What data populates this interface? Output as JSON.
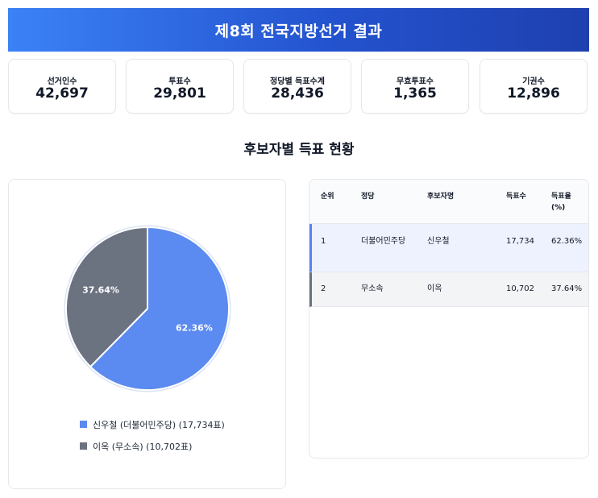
{
  "header": {
    "title": "제8회 전국지방선거 결과"
  },
  "stats": [
    {
      "label": "선거인수",
      "value": "42,697"
    },
    {
      "label": "투표수",
      "value": "29,801"
    },
    {
      "label": "정당별 득표수계",
      "value": "28,436"
    },
    {
      "label": "무효투표수",
      "value": "1,365"
    },
    {
      "label": "기권수",
      "value": "12,896"
    }
  ],
  "section": {
    "title": "후보자별 득표 현황"
  },
  "chart_data": {
    "type": "pie",
    "slices": [
      {
        "label": "신우철 (더불어민주당) (17,734표)",
        "value": 62.36,
        "display": "62.36%",
        "color": "#5b8af0"
      },
      {
        "label": "이옥 (무소속) (10,702표)",
        "value": 37.64,
        "display": "37.64%",
        "color": "#6b7280"
      }
    ],
    "legend_position": "bottom"
  },
  "table": {
    "headers": [
      "순위",
      "정당",
      "후보자명",
      "득표수",
      "득표율 (%)"
    ],
    "rows": [
      {
        "rank": "1",
        "party": "더불어민주당",
        "candidate": "신우철",
        "votes": "17,734",
        "rate": "62.36%",
        "accent": "#5b82ee"
      },
      {
        "rank": "2",
        "party": "무소속",
        "candidate": "이옥",
        "votes": "10,702",
        "rate": "37.64%",
        "accent": "#6b7280"
      }
    ]
  }
}
